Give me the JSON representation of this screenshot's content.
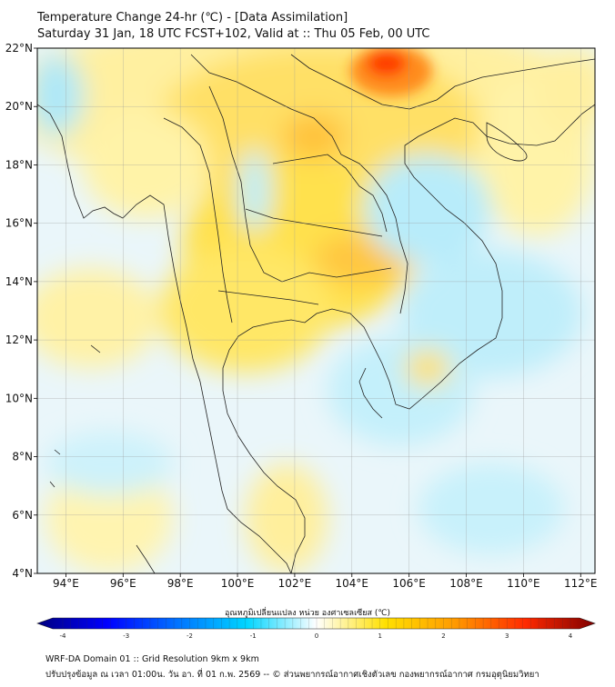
{
  "header": {
    "title": "Temperature Change 24-hr (℃) - [Data Assimilation]",
    "subtitle": "Saturday 31 Jan, 18 UTC FCST+102, Valid at :: Thu 05 Feb, 00 UTC"
  },
  "map": {
    "lon_range": [
      93,
      112.5
    ],
    "lat_range": [
      4,
      22
    ],
    "lon_ticks": [
      "94°E",
      "96°E",
      "98°E",
      "100°E",
      "102°E",
      "104°E",
      "106°E",
      "108°E",
      "110°E",
      "112°E"
    ],
    "lat_ticks": [
      "4°N",
      "6°N",
      "8°N",
      "10°N",
      "12°N",
      "14°N",
      "16°N",
      "18°N",
      "20°N",
      "22°N"
    ],
    "grid": true
  },
  "colorbar": {
    "title": "อุณหภูมิเปลี่ยนแปลง หน่วย องศาเซลเซียส (℃)",
    "min": -4,
    "max": 4,
    "tick_labels": [
      "-4",
      "-3",
      "-2",
      "-1",
      "0",
      "1",
      "2",
      "3",
      "4"
    ],
    "colors": [
      "#00007f",
      "#0000ff",
      "#0072ff",
      "#00d5ff",
      "#ffffff",
      "#ffe000",
      "#ff9900",
      "#ff2a00",
      "#7f0000"
    ]
  },
  "footer": {
    "line1": "WRF-DA Domain 01 :: Grid Resolution 9km x 9km",
    "line2": "ปรับปรุงข้อมูล ณ เวลา 01:00น. วัน อา. ที่ 01 ก.พ. 2569 -- © ส่วนพยากรณ์อากาศเชิงตัวเลข กองพยากรณ์อากาศ กรมอุตุนิยมวิทยา"
  }
}
